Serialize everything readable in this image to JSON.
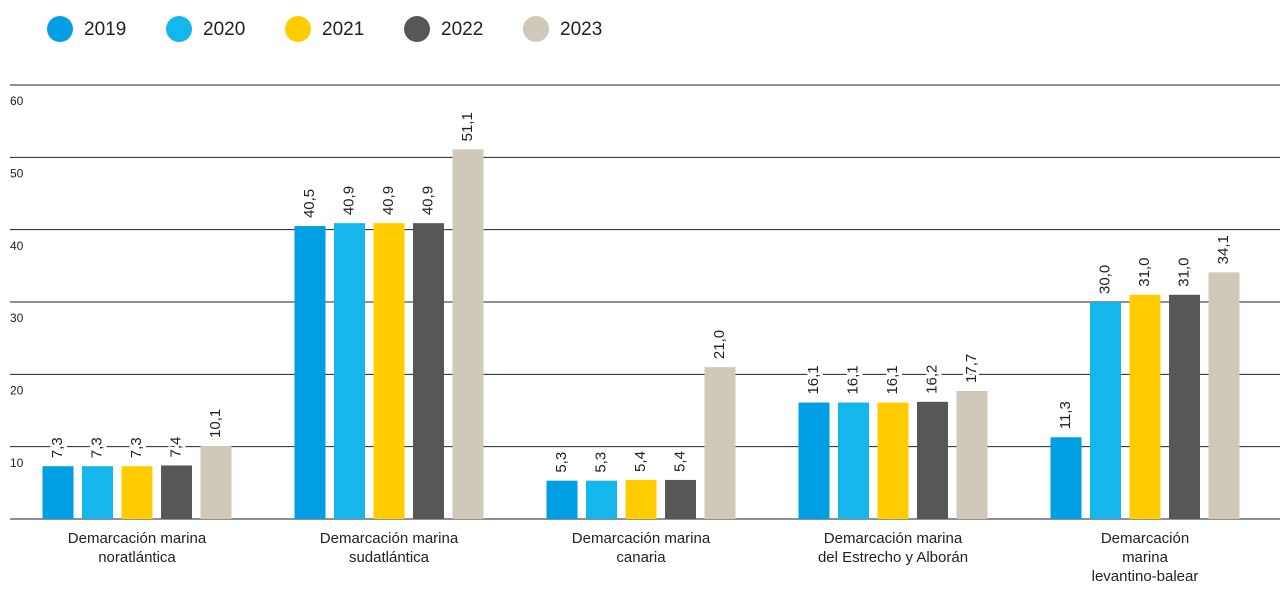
{
  "chart_data": {
    "type": "bar",
    "categories": [
      "Demarcación marina\nnoratlántica",
      "Demarcación marina\nsudatlántica",
      "Demarcación marina\ncanaria",
      "Demarcación marina\ndel Estrecho y Alborán",
      "Demarcación\nmarina\nlevantino-balear"
    ],
    "series": [
      {
        "name": "2019",
        "color": "#009fe3",
        "values": [
          7.3,
          40.5,
          5.3,
          16.1,
          11.3
        ],
        "value_labels": [
          "7,3",
          "40,5",
          "5,3",
          "16,1",
          "11,3"
        ]
      },
      {
        "name": "2020",
        "color": "#15b6ec",
        "values": [
          7.3,
          40.9,
          5.3,
          16.1,
          30.0
        ],
        "value_labels": [
          "7,3",
          "40,9",
          "5,3",
          "16,1",
          "30,0"
        ]
      },
      {
        "name": "2021",
        "color": "#ffcc00",
        "values": [
          7.3,
          40.9,
          5.4,
          16.1,
          31.0
        ],
        "value_labels": [
          "7,3",
          "40,9",
          "5,4",
          "16,1",
          "31,0"
        ]
      },
      {
        "name": "2022",
        "color": "#575756",
        "values": [
          7.4,
          40.9,
          5.4,
          16.2,
          31.0
        ],
        "value_labels": [
          "7,4",
          "40,9",
          "5,4",
          "16,2",
          "31,0"
        ]
      },
      {
        "name": "2023",
        "color": "#d0c8b9",
        "values": [
          10.1,
          51.1,
          21.0,
          17.7,
          34.1
        ],
        "value_labels": [
          "10,1",
          "51,1",
          "21,0",
          "17,7",
          "34,1"
        ]
      }
    ],
    "ylim": [
      0,
      60
    ],
    "yticks": [
      10,
      20,
      30,
      40,
      50,
      60
    ],
    "grid": true,
    "legend": "top-left"
  }
}
